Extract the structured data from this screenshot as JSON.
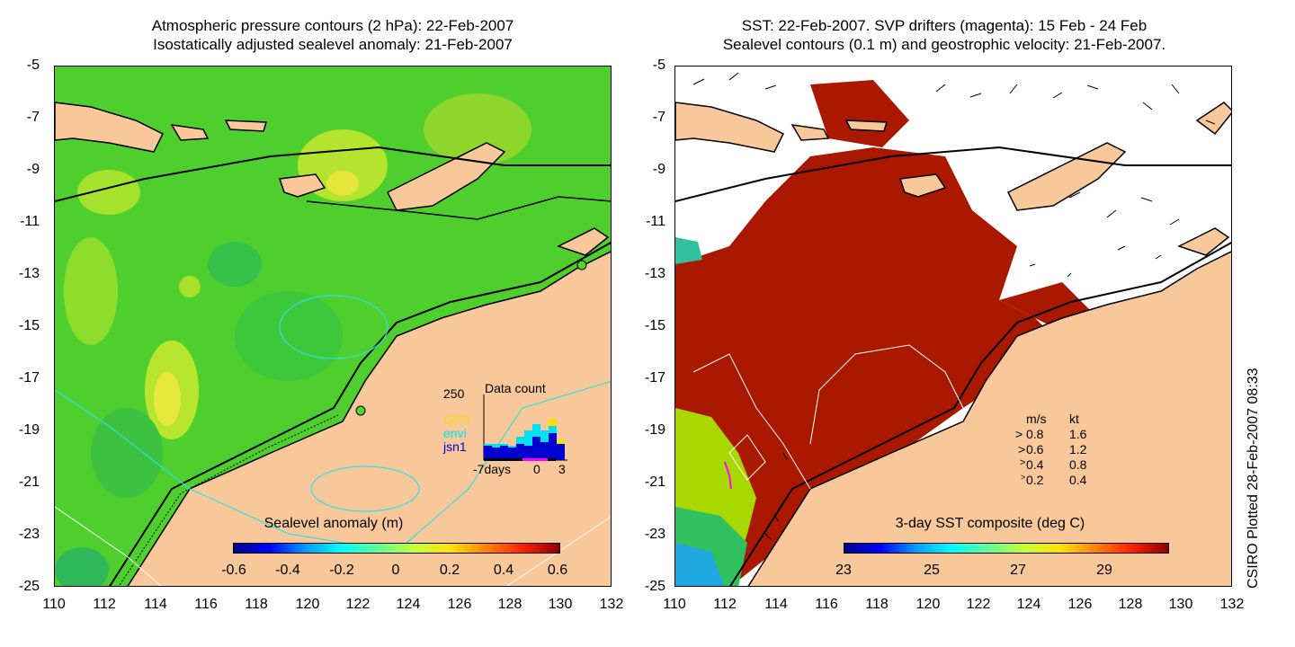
{
  "left": {
    "title_line1": "Atmospheric pressure contours (2 hPa): 22-Feb-2007",
    "title_line2": "Isostatically adjusted sealevel anomaly: 21-Feb-2007",
    "colorbar_title": "Sealevel anomaly (m)",
    "colorbar_ticks": [
      "-0.6",
      "-0.4",
      "-0.2",
      "0",
      "0.2",
      "0.4",
      "0.6"
    ],
    "data_count": {
      "label": "Data count",
      "ymax_label": "250",
      "legend": [
        {
          "name": "GFO",
          "color": "#f2e200"
        },
        {
          "name": "envi",
          "color": "#00e0f0"
        },
        {
          "name": "jsn1",
          "color": "#0000d0"
        }
      ],
      "x_labels": [
        "-7days",
        "0",
        "3"
      ]
    }
  },
  "right": {
    "title_line1": "SST: 22-Feb-2007. SVP drifters (magenta): 15 Feb - 24 Feb",
    "title_line2": "Sealevel contours (0.1 m) and geostrophic velocity: 21-Feb-2007.",
    "colorbar_title": "3-day SST composite (deg C)",
    "colorbar_ticks": [
      "23",
      "25",
      "27",
      "29"
    ],
    "speed_legend": {
      "header_ms": "m/s",
      "header_kt": "kt",
      "rows": [
        {
          "ms": "0.8",
          "kt": "1.6"
        },
        {
          "ms": "0.6",
          "kt": "1.2"
        },
        {
          "ms": "0.4",
          "kt": "0.8"
        },
        {
          "ms": "0.2",
          "kt": "0.4"
        }
      ]
    }
  },
  "y_ticks": [
    "-5",
    "-7",
    "-9",
    "-11",
    "-13",
    "-15",
    "-17",
    "-19",
    "-21",
    "-23",
    "-25"
  ],
  "x_ticks": [
    "110",
    "112",
    "114",
    "116",
    "118",
    "120",
    "122",
    "124",
    "126",
    "128",
    "130",
    "132"
  ],
  "credit": "CSIRO Plotted 28-Feb-2007 08:33",
  "colors": {
    "land": "#f9c89a",
    "sea_green": "#55d62a",
    "warm_sst": "#aa1800",
    "cloud": "#ffffff"
  }
}
